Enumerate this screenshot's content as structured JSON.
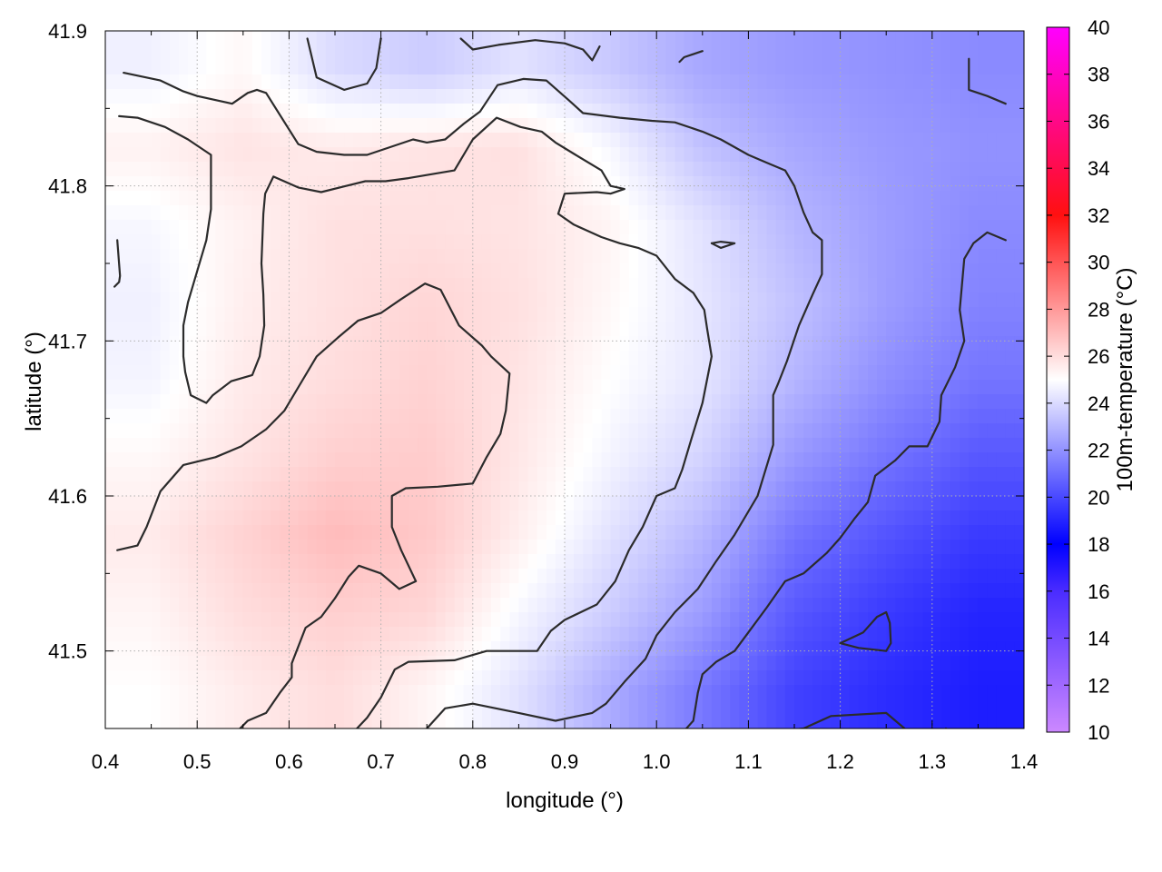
{
  "chart_data": {
    "type": "heatmap",
    "xlabel": "longitude (°)",
    "ylabel": "latitude (°)",
    "colorbar_label": "100m-temperature (°C)",
    "xlim": [
      0.4,
      1.4
    ],
    "ylim": [
      41.45,
      41.9
    ],
    "x_ticks": [
      "0.4",
      "0.5",
      "0.6",
      "0.7",
      "0.8",
      "0.9",
      "1.0",
      "1.1",
      "1.2",
      "1.3",
      "1.4"
    ],
    "y_ticks": [
      "41.5",
      "41.6",
      "41.7",
      "41.8",
      "41.9"
    ],
    "colorbar_range": [
      10,
      40
    ],
    "colorbar_ticks": [
      "10",
      "12",
      "14",
      "16",
      "18",
      "20",
      "22",
      "24",
      "26",
      "28",
      "30",
      "32",
      "34",
      "36",
      "38",
      "40"
    ],
    "colormap": [
      {
        "value": 10,
        "color": "#cc88ff"
      },
      {
        "value": 16,
        "color": "#4a2cff"
      },
      {
        "value": 18,
        "color": "#0000ff"
      },
      {
        "value": 25,
        "color": "#ffffff"
      },
      {
        "value": 32,
        "color": "#ff1010"
      },
      {
        "value": 40,
        "color": "#ff00ff"
      }
    ],
    "grid": true,
    "field": {
      "x": [
        0.45,
        0.55,
        0.65,
        0.75,
        0.85,
        0.95,
        1.05,
        1.15,
        1.25,
        1.35
      ],
      "y": [
        41.875,
        41.825,
        41.775,
        41.725,
        41.675,
        41.625,
        41.575,
        41.525,
        41.475
      ],
      "z": [
        [
          24.6,
          25.2,
          24.0,
          23.6,
          24.2,
          23.5,
          22.6,
          22.2,
          22.0,
          21.8
        ],
        [
          25.4,
          25.8,
          25.6,
          25.8,
          25.9,
          24.8,
          23.3,
          22.6,
          22.2,
          22.0
        ],
        [
          24.8,
          25.4,
          25.9,
          25.9,
          25.8,
          25.3,
          24.2,
          23.0,
          22.3,
          21.8
        ],
        [
          24.6,
          25.5,
          25.9,
          26.2,
          25.9,
          25.2,
          24.3,
          23.3,
          22.3,
          21.6
        ],
        [
          24.7,
          25.6,
          26.0,
          26.3,
          25.8,
          25.0,
          24.3,
          23.0,
          21.9,
          21.2
        ],
        [
          25.2,
          25.8,
          26.4,
          26.5,
          25.7,
          24.7,
          23.8,
          22.2,
          21.2,
          20.4
        ],
        [
          25.6,
          26.3,
          27.0,
          26.6,
          25.5,
          24.2,
          23.0,
          21.2,
          20.3,
          19.6
        ],
        [
          25.3,
          26.0,
          26.4,
          26.2,
          24.8,
          23.6,
          22.3,
          20.4,
          19.6,
          19.0
        ],
        [
          25.0,
          25.6,
          26.0,
          25.3,
          24.2,
          22.7,
          21.3,
          19.8,
          19.2,
          18.8
        ]
      ]
    },
    "contours": [
      [
        [
          0.42,
          41.873
        ],
        [
          0.46,
          41.868
        ],
        [
          0.485,
          41.861
        ],
        [
          0.5,
          41.858
        ],
        [
          0.538,
          41.853
        ],
        [
          0.555,
          41.86
        ],
        [
          0.565,
          41.862
        ],
        [
          0.575,
          41.86
        ],
        [
          0.61,
          41.827
        ],
        [
          0.63,
          41.822
        ],
        [
          0.66,
          41.82
        ],
        [
          0.685,
          41.82
        ],
        [
          0.735,
          41.83
        ],
        [
          0.75,
          41.828
        ],
        [
          0.77,
          41.83
        ],
        [
          0.79,
          41.84
        ],
        [
          0.808,
          41.848
        ],
        [
          0.827,
          41.865
        ],
        [
          0.855,
          41.869
        ],
        [
          0.88,
          41.868
        ],
        [
          0.905,
          41.855
        ],
        [
          0.92,
          41.847
        ],
        [
          0.96,
          41.844
        ],
        [
          0.995,
          41.842
        ],
        [
          1.02,
          41.841
        ],
        [
          1.05,
          41.835
        ],
        [
          1.07,
          41.83
        ],
        [
          1.1,
          41.82
        ],
        [
          1.12,
          41.815
        ],
        [
          1.14,
          41.81
        ],
        [
          1.15,
          41.8
        ],
        [
          1.16,
          41.783
        ],
        [
          1.17,
          41.77
        ],
        [
          1.18,
          41.765
        ],
        [
          1.18,
          41.743
        ],
        [
          1.17,
          41.73
        ],
        [
          1.155,
          41.71
        ],
        [
          1.142,
          41.687
        ],
        [
          1.132,
          41.672
        ],
        [
          1.127,
          41.665
        ],
        [
          1.127,
          41.633
        ],
        [
          1.11,
          41.6
        ],
        [
          1.085,
          41.575
        ],
        [
          1.065,
          41.558
        ],
        [
          1.045,
          41.54
        ],
        [
          1.02,
          41.525
        ],
        [
          1.0,
          41.51
        ],
        [
          0.988,
          41.495
        ],
        [
          0.965,
          41.48
        ],
        [
          0.945,
          41.466
        ],
        [
          0.93,
          41.46
        ],
        [
          0.89,
          41.455
        ],
        [
          0.85,
          41.46
        ],
        [
          0.8,
          41.466
        ],
        [
          0.77,
          41.463
        ],
        [
          0.75,
          41.45
        ],
        [
          0.75,
          41.44
        ]
      ],
      [
        [
          0.415,
          41.845
        ],
        [
          0.435,
          41.844
        ],
        [
          0.465,
          41.838
        ],
        [
          0.49,
          41.83
        ],
        [
          0.515,
          41.82
        ],
        [
          0.515,
          41.785
        ],
        [
          0.51,
          41.765
        ],
        [
          0.5,
          41.745
        ],
        [
          0.49,
          41.725
        ],
        [
          0.485,
          41.71
        ],
        [
          0.485,
          41.69
        ],
        [
          0.487,
          41.68
        ],
        [
          0.493,
          41.665
        ],
        [
          0.51,
          41.66
        ],
        [
          0.517,
          41.665
        ],
        [
          0.537,
          41.674
        ],
        [
          0.56,
          41.678
        ],
        [
          0.568,
          41.69
        ],
        [
          0.573,
          41.71
        ],
        [
          0.572,
          41.73
        ],
        [
          0.57,
          41.75
        ],
        [
          0.572,
          41.782
        ],
        [
          0.574,
          41.795
        ],
        [
          0.583,
          41.806
        ],
        [
          0.61,
          41.799
        ],
        [
          0.635,
          41.796
        ],
        [
          0.683,
          41.803
        ],
        [
          0.705,
          41.803
        ],
        [
          0.73,
          41.805
        ],
        [
          0.78,
          41.81
        ],
        [
          0.8,
          41.83
        ],
        [
          0.826,
          41.844
        ],
        [
          0.852,
          41.838
        ],
        [
          0.875,
          41.835
        ],
        [
          0.89,
          41.828
        ],
        [
          0.912,
          41.82
        ],
        [
          0.94,
          41.81
        ],
        [
          0.95,
          41.8
        ],
        [
          0.965,
          41.798
        ],
        [
          0.95,
          41.795
        ],
        [
          0.935,
          41.796
        ],
        [
          0.9,
          41.795
        ],
        [
          0.893,
          41.782
        ],
        [
          0.91,
          41.775
        ],
        [
          0.94,
          41.767
        ],
        [
          0.96,
          41.763
        ],
        [
          0.98,
          41.76
        ],
        [
          1.0,
          41.755
        ],
        [
          1.02,
          41.74
        ],
        [
          1.04,
          41.731
        ],
        [
          1.052,
          41.72
        ],
        [
          1.055,
          41.708
        ],
        [
          1.06,
          41.69
        ],
        [
          1.05,
          41.66
        ],
        [
          1.038,
          41.637
        ],
        [
          1.028,
          41.617
        ],
        [
          1.02,
          41.605
        ],
        [
          1.0,
          41.6
        ],
        [
          0.985,
          41.58
        ],
        [
          0.97,
          41.565
        ],
        [
          0.955,
          41.545
        ],
        [
          0.935,
          41.53
        ],
        [
          0.9,
          41.52
        ],
        [
          0.885,
          41.513
        ],
        [
          0.87,
          41.5
        ],
        [
          0.815,
          41.5
        ],
        [
          0.78,
          41.494
        ],
        [
          0.73,
          41.493
        ],
        [
          0.715,
          41.488
        ],
        [
          0.7,
          41.47
        ],
        [
          0.685,
          41.457
        ],
        [
          0.658,
          41.44
        ]
      ],
      [
        [
          0.413,
          41.765
        ],
        [
          0.416,
          41.742
        ],
        [
          0.415,
          41.738
        ],
        [
          0.41,
          41.735
        ]
      ],
      [
        [
          0.413,
          41.565
        ],
        [
          0.435,
          41.568
        ],
        [
          0.445,
          41.58
        ],
        [
          0.46,
          41.603
        ],
        [
          0.485,
          41.62
        ],
        [
          0.52,
          41.625
        ],
        [
          0.548,
          41.632
        ],
        [
          0.575,
          41.643
        ],
        [
          0.595,
          41.655
        ],
        [
          0.61,
          41.67
        ],
        [
          0.63,
          41.69
        ],
        [
          0.653,
          41.702
        ],
        [
          0.675,
          41.713
        ],
        [
          0.7,
          41.718
        ],
        [
          0.722,
          41.727
        ],
        [
          0.748,
          41.737
        ],
        [
          0.765,
          41.733
        ],
        [
          0.785,
          41.71
        ],
        [
          0.81,
          41.697
        ],
        [
          0.82,
          41.69
        ],
        [
          0.84,
          41.679
        ],
        [
          0.836,
          41.655
        ],
        [
          0.83,
          41.64
        ],
        [
          0.815,
          41.625
        ],
        [
          0.8,
          41.608
        ],
        [
          0.762,
          41.606
        ],
        [
          0.727,
          41.605
        ],
        [
          0.712,
          41.6
        ],
        [
          0.712,
          41.58
        ],
        [
          0.722,
          41.565
        ],
        [
          0.738,
          41.545
        ],
        [
          0.72,
          41.54
        ],
        [
          0.7,
          41.55
        ],
        [
          0.676,
          41.555
        ],
        [
          0.665,
          41.548
        ],
        [
          0.65,
          41.534
        ],
        [
          0.635,
          41.522
        ],
        [
          0.618,
          41.515
        ],
        [
          0.603,
          41.492
        ],
        [
          0.603,
          41.483
        ],
        [
          0.59,
          41.473
        ],
        [
          0.575,
          41.46
        ],
        [
          0.555,
          41.455
        ],
        [
          0.535,
          41.443
        ],
        [
          0.52,
          41.44
        ]
      ],
      [
        [
          0.62,
          41.895
        ],
        [
          0.63,
          41.87
        ],
        [
          0.66,
          41.862
        ],
        [
          0.685,
          41.866
        ],
        [
          0.695,
          41.876
        ],
        [
          0.7,
          41.895
        ]
      ],
      [
        [
          0.787,
          41.895
        ],
        [
          0.8,
          41.888
        ],
        [
          0.828,
          41.891
        ],
        [
          0.868,
          41.894
        ],
        [
          0.9,
          41.892
        ]
      ],
      [
        [
          0.9,
          41.892
        ],
        [
          0.92,
          41.888
        ],
        [
          0.93,
          41.881
        ],
        [
          0.938,
          41.89
        ]
      ],
      [
        [
          1.025,
          41.88
        ],
        [
          1.03,
          41.883
        ],
        [
          1.05,
          41.887
        ]
      ],
      [
        [
          1.34,
          41.882
        ],
        [
          1.34,
          41.862
        ],
        [
          1.36,
          41.858
        ],
        [
          1.38,
          41.853
        ]
      ],
      [
        [
          1.06,
          41.763
        ],
        [
          1.07,
          41.764
        ],
        [
          1.085,
          41.763
        ],
        [
          1.07,
          41.76
        ],
        [
          1.06,
          41.763
        ]
      ],
      [
        [
          1.13,
          41.448
        ],
        [
          1.16,
          41.45
        ],
        [
          1.19,
          41.458
        ],
        [
          1.25,
          41.46
        ],
        [
          1.27,
          41.45
        ],
        [
          1.28,
          41.44
        ]
      ],
      [
        [
          1.38,
          41.765
        ],
        [
          1.36,
          41.77
        ],
        [
          1.345,
          41.763
        ],
        [
          1.335,
          41.753
        ],
        [
          1.33,
          41.72
        ],
        [
          1.335,
          41.7
        ],
        [
          1.325,
          41.683
        ],
        [
          1.31,
          41.665
        ],
        [
          1.308,
          41.648
        ],
        [
          1.295,
          41.632
        ],
        [
          1.275,
          41.632
        ],
        [
          1.26,
          41.623
        ],
        [
          1.238,
          41.613
        ],
        [
          1.23,
          41.596
        ],
        [
          1.215,
          41.585
        ],
        [
          1.2,
          41.573
        ],
        [
          1.185,
          41.563
        ],
        [
          1.16,
          41.55
        ],
        [
          1.14,
          41.545
        ],
        [
          1.12,
          41.528
        ],
        [
          1.1,
          41.512
        ],
        [
          1.085,
          41.5
        ],
        [
          1.065,
          41.493
        ],
        [
          1.05,
          41.485
        ],
        [
          1.045,
          41.473
        ],
        [
          1.04,
          41.455
        ],
        [
          1.028,
          41.447
        ],
        [
          1.02,
          41.443
        ]
      ],
      [
        [
          1.2,
          41.505
        ],
        [
          1.225,
          41.512
        ],
        [
          1.24,
          41.522
        ],
        [
          1.25,
          41.525
        ],
        [
          1.254,
          41.518
        ],
        [
          1.255,
          41.505
        ],
        [
          1.25,
          41.5
        ],
        [
          1.22,
          41.502
        ],
        [
          1.2,
          41.505
        ]
      ],
      [
        [
          1.31,
          41.445
        ],
        [
          1.315,
          41.45
        ],
        [
          1.318,
          41.44
        ]
      ]
    ]
  }
}
